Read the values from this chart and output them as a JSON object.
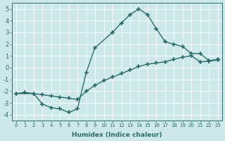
{
  "xlabel": "Humidex (Indice chaleur)",
  "ylabel": "",
  "xlim": [
    -0.5,
    23.5
  ],
  "ylim": [
    -4.5,
    5.5
  ],
  "xticks": [
    0,
    1,
    2,
    3,
    4,
    5,
    6,
    7,
    8,
    9,
    10,
    11,
    12,
    13,
    14,
    15,
    16,
    17,
    18,
    19,
    20,
    21,
    22,
    23
  ],
  "yticks": [
    -4,
    -3,
    -2,
    -1,
    0,
    1,
    2,
    3,
    4,
    5
  ],
  "bg_color": "#cce8e8",
  "line_color": "#2e6b6b",
  "line1_x": [
    0,
    2,
    3,
    4,
    5,
    6,
    7,
    8,
    9,
    11,
    12,
    13,
    14,
    15,
    16,
    17,
    18,
    19,
    20,
    21,
    22,
    23
  ],
  "line1_y": [
    -2.2,
    -2.2,
    -3.1,
    -3.4,
    -3.5,
    -3.8,
    -3.5,
    -0.4,
    1.7,
    3.0,
    3.8,
    4.5,
    5.0,
    4.5,
    3.3,
    2.2,
    2.0,
    1.8,
    1.2,
    1.2,
    0.6,
    0.7
  ],
  "line2_x": [
    0,
    1,
    2,
    3,
    4,
    5,
    6,
    7,
    8,
    9,
    10,
    11,
    12,
    13,
    14,
    15,
    16,
    17,
    18,
    19,
    20,
    21,
    22,
    23
  ],
  "line2_y": [
    -2.2,
    -2.1,
    -2.2,
    -2.3,
    -2.4,
    -2.5,
    -2.6,
    -2.7,
    -2.0,
    -1.5,
    -1.1,
    -0.8,
    -0.5,
    -0.2,
    0.1,
    0.3,
    0.4,
    0.5,
    0.7,
    0.9,
    1.0,
    0.5,
    0.55,
    0.65
  ],
  "marker": "+",
  "markersize": 5,
  "linewidth": 1.0
}
